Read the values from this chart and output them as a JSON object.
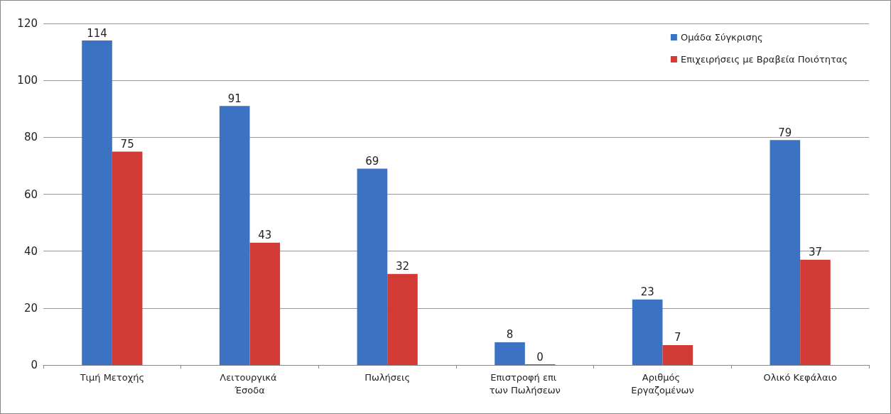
{
  "chart_data": {
    "type": "bar",
    "categories": [
      "Τιμή Μετοχής",
      "Λειτουργικά Έσοδα",
      "Πωλήσεις",
      "Επιστροφή επι των Πωλήσεων",
      "Αριθμός Εργαζομένων",
      "Ολικό Κεφάλαιο"
    ],
    "series": [
      {
        "name": "Ομάδα Σύγκρισης",
        "color": "#3b72c2",
        "values": [
          114,
          91,
          69,
          8,
          23,
          79
        ]
      },
      {
        "name": "Επιχειρήσεις με Βραβεία Ποιότητας",
        "color": "#d23a36",
        "values": [
          75,
          43,
          32,
          0,
          7,
          37
        ]
      }
    ],
    "ylim": [
      0,
      120
    ],
    "yticks": [
      0,
      20,
      40,
      60,
      80,
      100,
      120
    ],
    "grid": "y",
    "legend": "top right",
    "data_labels": true
  }
}
